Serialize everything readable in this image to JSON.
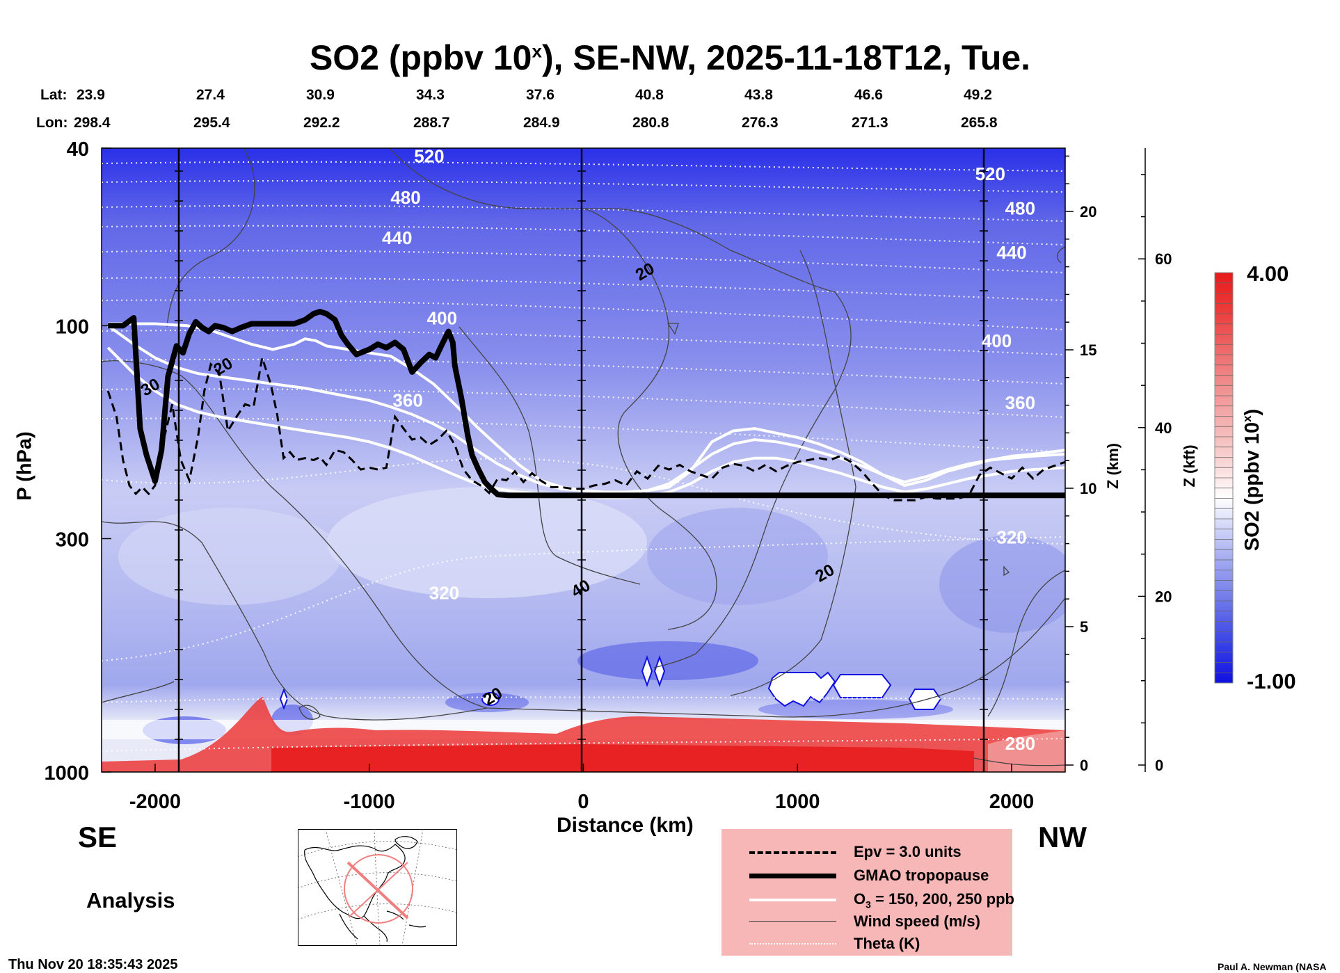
{
  "page": {
    "title_main": "SO2 (ppbv 10",
    "title_sup": "x",
    "title_tail": "), SE-NW, 2025-11-18T12, Tue.",
    "lat_label": "Lat:",
    "lon_label": "Lon:",
    "lats": [
      "23.9",
      "27.4",
      "30.9",
      "34.3",
      "37.6",
      "40.8",
      "43.8",
      "46.6",
      "49.2"
    ],
    "lons": [
      "298.4",
      "295.4",
      "292.2",
      "288.7",
      "284.9",
      "280.8",
      "276.3",
      "271.3",
      "265.8"
    ],
    "se_label": "SE",
    "nw_label": "NW",
    "analysis_label": "Analysis",
    "timestamp": "Thu Nov 20 18:35:43 2025",
    "credit": "Paul A. Newman (NASA"
  },
  "legend": {
    "epv": "Epv = 3.0 units",
    "tropopause": "GMAO tropopause",
    "o3_main": "O",
    "o3_sub": "3",
    "o3_tail": " = 150, 200, 250 ppb",
    "wind": "Wind speed (m/s)",
    "theta": "Theta (K)"
  },
  "chart_data": {
    "type": "heatmap",
    "title": "SO2 (ppbv 10^x), SE-NW, 2025-11-18T12, Tue.",
    "xlabel": "Distance (km)",
    "ylabel": "P (hPa)",
    "ylabel_right_km": "Z (km)",
    "ylabel_right_kft": "Z (kft)",
    "xlim": [
      -2250,
      2250
    ],
    "ylim": [
      1000,
      40
    ],
    "x_ticks": [
      "-2000",
      "-1000",
      "0",
      "1000",
      "2000"
    ],
    "x_tick_values": [
      -2000,
      -1000,
      0,
      1000,
      2000
    ],
    "y_ticks": [
      "40",
      "100",
      "300",
      "1000"
    ],
    "y_tick_values": [
      40,
      100,
      300,
      1000
    ],
    "z_km_ticks": [
      "0",
      "5",
      "10",
      "15",
      "20"
    ],
    "z_km_values": [
      0,
      5,
      10,
      15,
      20
    ],
    "z_kft_ticks": [
      "0",
      "20",
      "40",
      "60"
    ],
    "z_kft_values": [
      0,
      20,
      40,
      60
    ],
    "colorbar": {
      "label": "SO2 (ppbv 10",
      "label_sup": "x",
      "label_tail": ")",
      "max_label": "4.00",
      "min_label": "-1.00",
      "max": 4.0,
      "min": -1.0,
      "colors": [
        "#1010e0",
        "#3a44e6",
        "#6e78ea",
        "#a4aaf0",
        "#d2d6f8",
        "#ffffff",
        "#f8d0d0",
        "#f2a0a0",
        "#ee7070",
        "#ec3e3e",
        "#e81a1a"
      ]
    },
    "theta_labels": [
      {
        "text": "520",
        "x": -720,
        "p": 42
      },
      {
        "text": "480",
        "x": -830,
        "p": 52
      },
      {
        "text": "440",
        "x": -870,
        "p": 64
      },
      {
        "text": "400",
        "x": -660,
        "p": 97
      },
      {
        "text": "360",
        "x": -820,
        "p": 148
      },
      {
        "text": "320",
        "x": -650,
        "p": 400
      },
      {
        "text": "520",
        "x": 1900,
        "p": 46
      },
      {
        "text": "480",
        "x": 2040,
        "p": 55
      },
      {
        "text": "440",
        "x": 2000,
        "p": 69
      },
      {
        "text": "400",
        "x": 1930,
        "p": 109
      },
      {
        "text": "360",
        "x": 2040,
        "p": 150
      },
      {
        "text": "320",
        "x": 2000,
        "p": 300
      },
      {
        "text": "280",
        "x": 2040,
        "p": 870
      }
    ],
    "wind_labels": [
      {
        "text": "20",
        "x": 290,
        "p": 76
      },
      {
        "text": "40",
        "x": -10,
        "p": 390
      },
      {
        "text": "20",
        "x": 1130,
        "p": 360
      },
      {
        "text": "20",
        "x": -420,
        "p": 680
      },
      {
        "text": "20",
        "x": -1680,
        "p": 124
      },
      {
        "text": "30",
        "x": -2020,
        "p": 138
      }
    ],
    "tropopause": {
      "x": [
        -2220,
        -2150,
        -2100,
        -2070,
        -2040,
        -2000,
        -1970,
        -1940,
        -1900,
        -1870,
        -1840,
        -1810,
        -1780,
        -1750,
        -1720,
        -1680,
        -1640,
        -1600,
        -1550,
        -1500,
        -1450,
        -1400,
        -1350,
        -1300,
        -1260,
        -1230,
        -1200,
        -1160,
        -1130,
        -1100,
        -1060,
        -1000,
        -960,
        -920,
        -880,
        -840,
        -800,
        -760,
        -720,
        -690,
        -660,
        -630,
        -610,
        -600,
        -570,
        -540,
        -520,
        -490,
        -460,
        -430,
        -400,
        -350,
        -300,
        -200,
        0,
        500,
        1000,
        1500,
        2000,
        2250
      ],
      "p": [
        100,
        100,
        96,
        170,
        195,
        223,
        190,
        130,
        111,
        115,
        104,
        98,
        101,
        103,
        100,
        101,
        103,
        101,
        99,
        99,
        99,
        99,
        99,
        97,
        94,
        93,
        94,
        97,
        105,
        110,
        116,
        113,
        110,
        112,
        109,
        113,
        127,
        121,
        116,
        118,
        110,
        103,
        109,
        123,
        145,
        176,
        195,
        210,
        224,
        232,
        239,
        240,
        240,
        240,
        240,
        240,
        240,
        240,
        240,
        240
      ]
    },
    "epv": {
      "x": [
        -2220,
        -2180,
        -2150,
        -2120,
        -2090,
        -2060,
        -2030,
        -2000,
        -1960,
        -1920,
        -1880,
        -1840,
        -1800,
        -1770,
        -1740,
        -1700,
        -1660,
        -1620,
        -1580,
        -1540,
        -1500,
        -1460,
        -1430,
        -1400,
        -1370,
        -1340,
        -1300,
        -1260,
        -1230,
        -1200,
        -1160,
        -1120,
        -1080,
        -1040,
        -1000,
        -960,
        -920,
        -880,
        -840,
        -800,
        -760,
        -720,
        -680,
        -640,
        -600,
        -560,
        -520,
        -480,
        -440,
        -400,
        -360,
        -320,
        -280,
        -240,
        -200,
        -150,
        -100,
        -50,
        0,
        50,
        100,
        150,
        200,
        250,
        300,
        350,
        400,
        450,
        500,
        550,
        600,
        650,
        700,
        750,
        800,
        850,
        900,
        950,
        1000,
        1050,
        1100,
        1150,
        1200,
        1250,
        1300,
        1350,
        1400,
        1450,
        1500,
        1550,
        1600,
        1650,
        1700,
        1750,
        1800,
        1850,
        1900,
        1950,
        2000,
        2050,
        2100,
        2150,
        2200,
        2250
      ],
      "p": [
        140,
        160,
        200,
        228,
        238,
        230,
        238,
        228,
        180,
        150,
        200,
        222,
        178,
        140,
        122,
        128,
        172,
        160,
        150,
        152,
        118,
        135,
        158,
        198,
        192,
        200,
        198,
        200,
        197,
        205,
        190,
        192,
        200,
        210,
        208,
        210,
        208,
        160,
        170,
        180,
        178,
        185,
        180,
        172,
        185,
        210,
        222,
        228,
        237,
        220,
        222,
        212,
        224,
        214,
        222,
        230,
        230,
        232,
        232,
        228,
        226,
        222,
        228,
        212,
        220,
        206,
        210,
        205,
        212,
        216,
        220,
        208,
        204,
        206,
        212,
        205,
        212,
        206,
        202,
        200,
        198,
        200,
        196,
        202,
        212,
        226,
        240,
        246,
        246,
        246,
        242,
        244,
        244,
        244,
        240,
        216,
        208,
        214,
        220,
        208,
        220,
        210,
        206,
        202
      ]
    },
    "o3_contours": [
      {
        "label": "150 ppb",
        "x": [
          -2220,
          -2150,
          -2000,
          -1850,
          -1750,
          -1650,
          -1550,
          -1450,
          -1350,
          -1300,
          -1250,
          -1200,
          -1100,
          -1000,
          -900,
          -800,
          -700,
          -600,
          -500,
          -400,
          -300,
          -200,
          -100,
          0,
          100,
          200,
          300,
          400,
          500,
          600,
          700,
          800,
          900,
          1000,
          1100,
          1200,
          1300,
          1400,
          1500,
          1600,
          1700,
          1800,
          1900,
          2000,
          2100,
          2250
        ],
        "p": [
          99,
          99,
          99,
          100,
          102,
          106,
          110,
          113,
          110,
          107,
          108,
          111,
          113,
          115,
          117,
          125,
          135,
          150,
          168,
          186,
          205,
          222,
          230,
          234,
          236,
          236,
          234,
          230,
          212,
          182,
          172,
          170,
          174,
          178,
          184,
          192,
          202,
          216,
          228,
          222,
          212,
          206,
          200,
          196,
          194,
          190
        ]
      },
      {
        "label": "200 ppb",
        "x": [
          -2220,
          -2100,
          -2000,
          -1900,
          -1800,
          -1700,
          -1600,
          -1500,
          -1400,
          -1300,
          -1200,
          -1100,
          -1000,
          -900,
          -800,
          -700,
          -600,
          -500,
          -400,
          -300,
          -200,
          -100,
          0,
          100,
          200,
          300,
          400,
          500,
          600,
          700,
          800,
          900,
          1000,
          1100,
          1200,
          1300,
          1400,
          1500,
          1600,
          1700,
          1800,
          1900,
          2000,
          2100,
          2250
        ],
        "p": [
          100,
          110,
          118,
          124,
          128,
          130,
          132,
          134,
          136,
          138,
          141,
          144,
          147,
          152,
          158,
          166,
          176,
          190,
          204,
          216,
          226,
          232,
          234,
          236,
          236,
          234,
          226,
          210,
          194,
          184,
          180,
          182,
          186,
          192,
          198,
          206,
          216,
          224,
          218,
          210,
          204,
          200,
          198,
          196,
          194
        ]
      },
      {
        "label": "250 ppb",
        "x": [
          -2220,
          -2100,
          -2000,
          -1900,
          -1800,
          -1700,
          -1600,
          -1500,
          -1400,
          -1300,
          -1200,
          -1100,
          -1000,
          -900,
          -800,
          -700,
          -600,
          -500,
          -400,
          -300,
          -200,
          -100,
          0,
          100,
          200,
          300,
          400,
          500,
          600,
          700,
          800,
          900,
          1000,
          1100,
          1200,
          1300,
          1400,
          1500,
          1600,
          1700,
          1800,
          1900,
          2000,
          2100,
          2250
        ],
        "p": [
          112,
          128,
          140,
          150,
          156,
          160,
          163,
          166,
          169,
          172,
          175,
          178,
          182,
          188,
          196,
          206,
          216,
          226,
          232,
          236,
          238,
          240,
          242,
          243,
          243,
          241,
          236,
          226,
          212,
          202,
          198,
          198,
          202,
          208,
          214,
          222,
          230,
          236,
          232,
          226,
          220,
          216,
          212,
          210,
          208
        ]
      }
    ]
  }
}
